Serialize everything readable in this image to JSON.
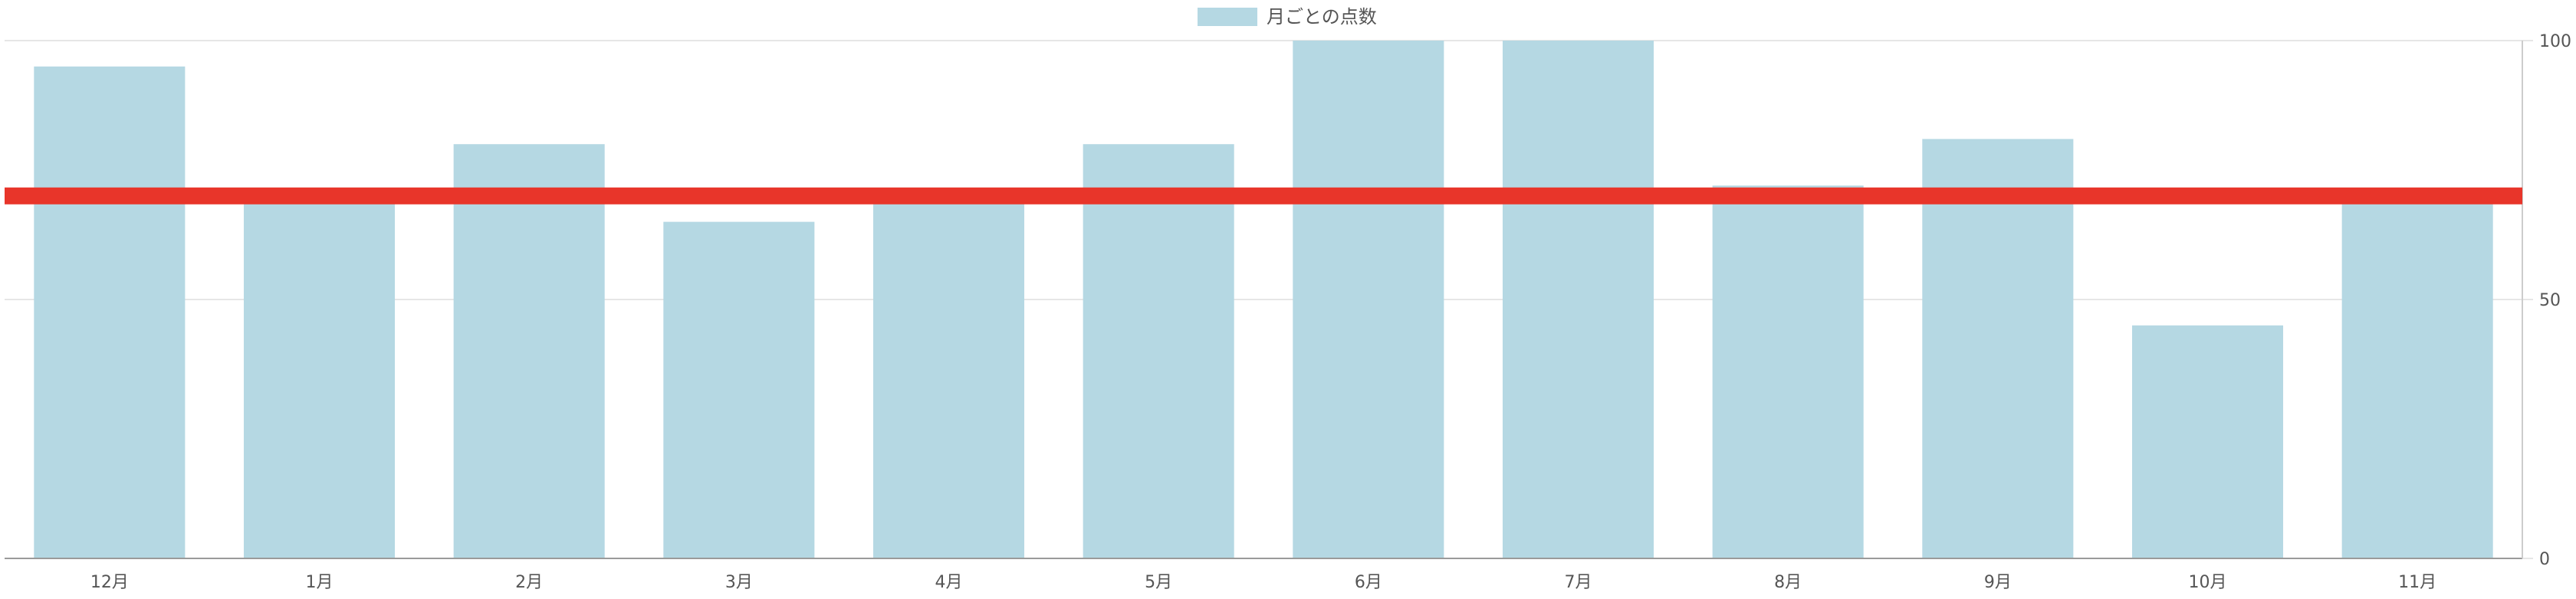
{
  "legend": {
    "label": "月ごとの点数"
  },
  "colors": {
    "bar": "#b5d8e3",
    "target_line": "#e8352a",
    "grid": "#e6e6e6",
    "axis": "#cccccc",
    "text": "#555555"
  },
  "chart_data": {
    "type": "bar",
    "categories": [
      "12月",
      "1月",
      "2月",
      "3月",
      "4月",
      "5月",
      "6月",
      "7月",
      "8月",
      "9月",
      "10月",
      "11月"
    ],
    "series": [
      {
        "name": "月ごとの点数",
        "values": [
          95,
          70,
          80,
          65,
          70,
          80,
          100,
          100,
          72,
          81,
          45,
          70
        ]
      }
    ],
    "reference_line": {
      "value": 70,
      "color": "#e8352a"
    },
    "ylim": [
      0,
      100
    ],
    "yticks": [
      "0",
      "50",
      "100"
    ],
    "y_axis_position": "right",
    "legend_position": "top-center",
    "grid": true,
    "title": "",
    "xlabel": "",
    "ylabel": ""
  }
}
